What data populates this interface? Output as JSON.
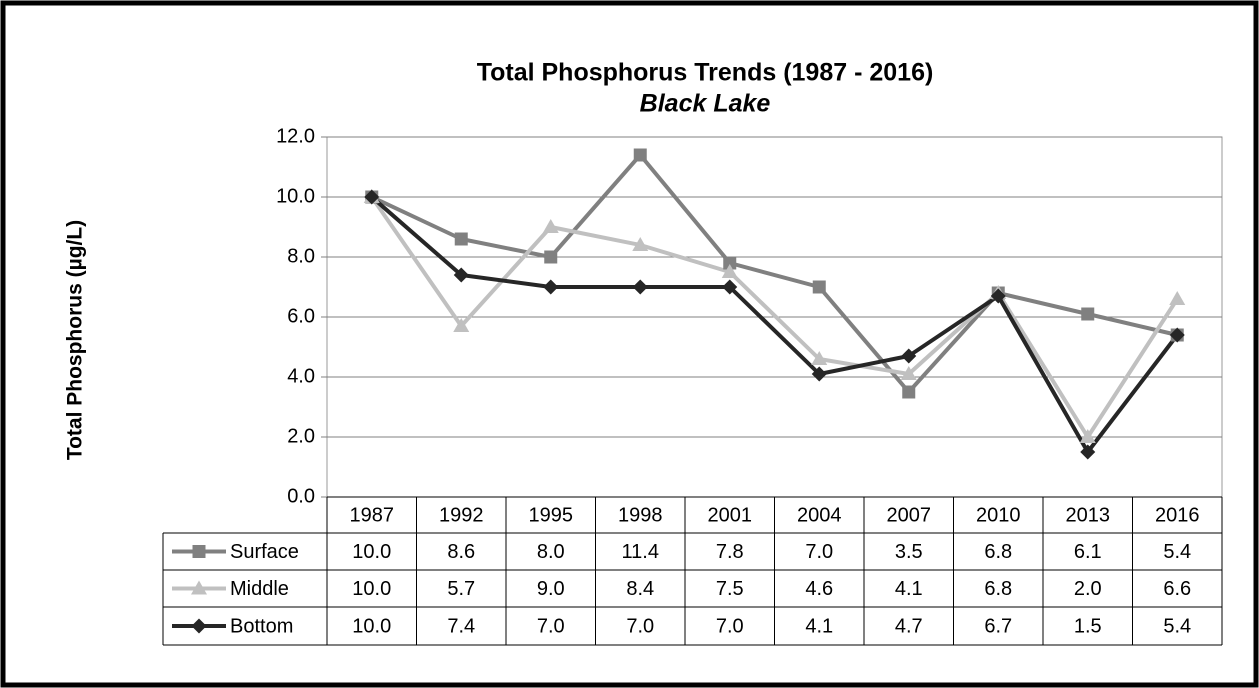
{
  "chart_data": {
    "type": "line",
    "title": "Total Phosphorus Trends (1987 - 2016)",
    "subtitle": "Black Lake",
    "y_label": "Total Phosphorus (µg/L)",
    "categories": [
      "1987",
      "1992",
      "1995",
      "1998",
      "2001",
      "2004",
      "2007",
      "2010",
      "2013",
      "2016"
    ],
    "series": [
      {
        "name": "Surface",
        "color": "#808080",
        "marker": "square",
        "values": [
          10.0,
          8.6,
          8.0,
          11.4,
          7.8,
          7.0,
          3.5,
          6.8,
          6.1,
          5.4
        ],
        "value_labels": [
          "10.0",
          "8.6",
          "8.0",
          "11.4",
          "7.8",
          "7.0",
          "3.5",
          "6.8",
          "6.1",
          "5.4"
        ]
      },
      {
        "name": "Middle",
        "color": "#c0c0c0",
        "marker": "triangle",
        "values": [
          10.0,
          5.7,
          9.0,
          8.4,
          7.5,
          4.6,
          4.1,
          6.8,
          2.0,
          6.6
        ],
        "value_labels": [
          "10.0",
          "5.7",
          "9.0",
          "8.4",
          "7.5",
          "4.6",
          "4.1",
          "6.8",
          "2.0",
          "6.6"
        ]
      },
      {
        "name": "Bottom",
        "color": "#262626",
        "marker": "diamond",
        "values": [
          10.0,
          7.4,
          7.0,
          7.0,
          7.0,
          4.1,
          4.7,
          6.7,
          1.5,
          5.4
        ],
        "value_labels": [
          "10.0",
          "7.4",
          "7.0",
          "7.0",
          "7.0",
          "4.1",
          "4.7",
          "6.7",
          "1.5",
          "5.4"
        ]
      }
    ],
    "ylim": [
      0,
      12
    ],
    "yticks": [
      {
        "value": 0,
        "label": "0.0"
      },
      {
        "value": 2,
        "label": "2.0"
      },
      {
        "value": 4,
        "label": "4.0"
      },
      {
        "value": 6,
        "label": "6.0"
      },
      {
        "value": 8,
        "label": "8.0"
      },
      {
        "value": 10,
        "label": "10.0"
      },
      {
        "value": 12,
        "label": "12.0"
      }
    ],
    "grid": true
  }
}
